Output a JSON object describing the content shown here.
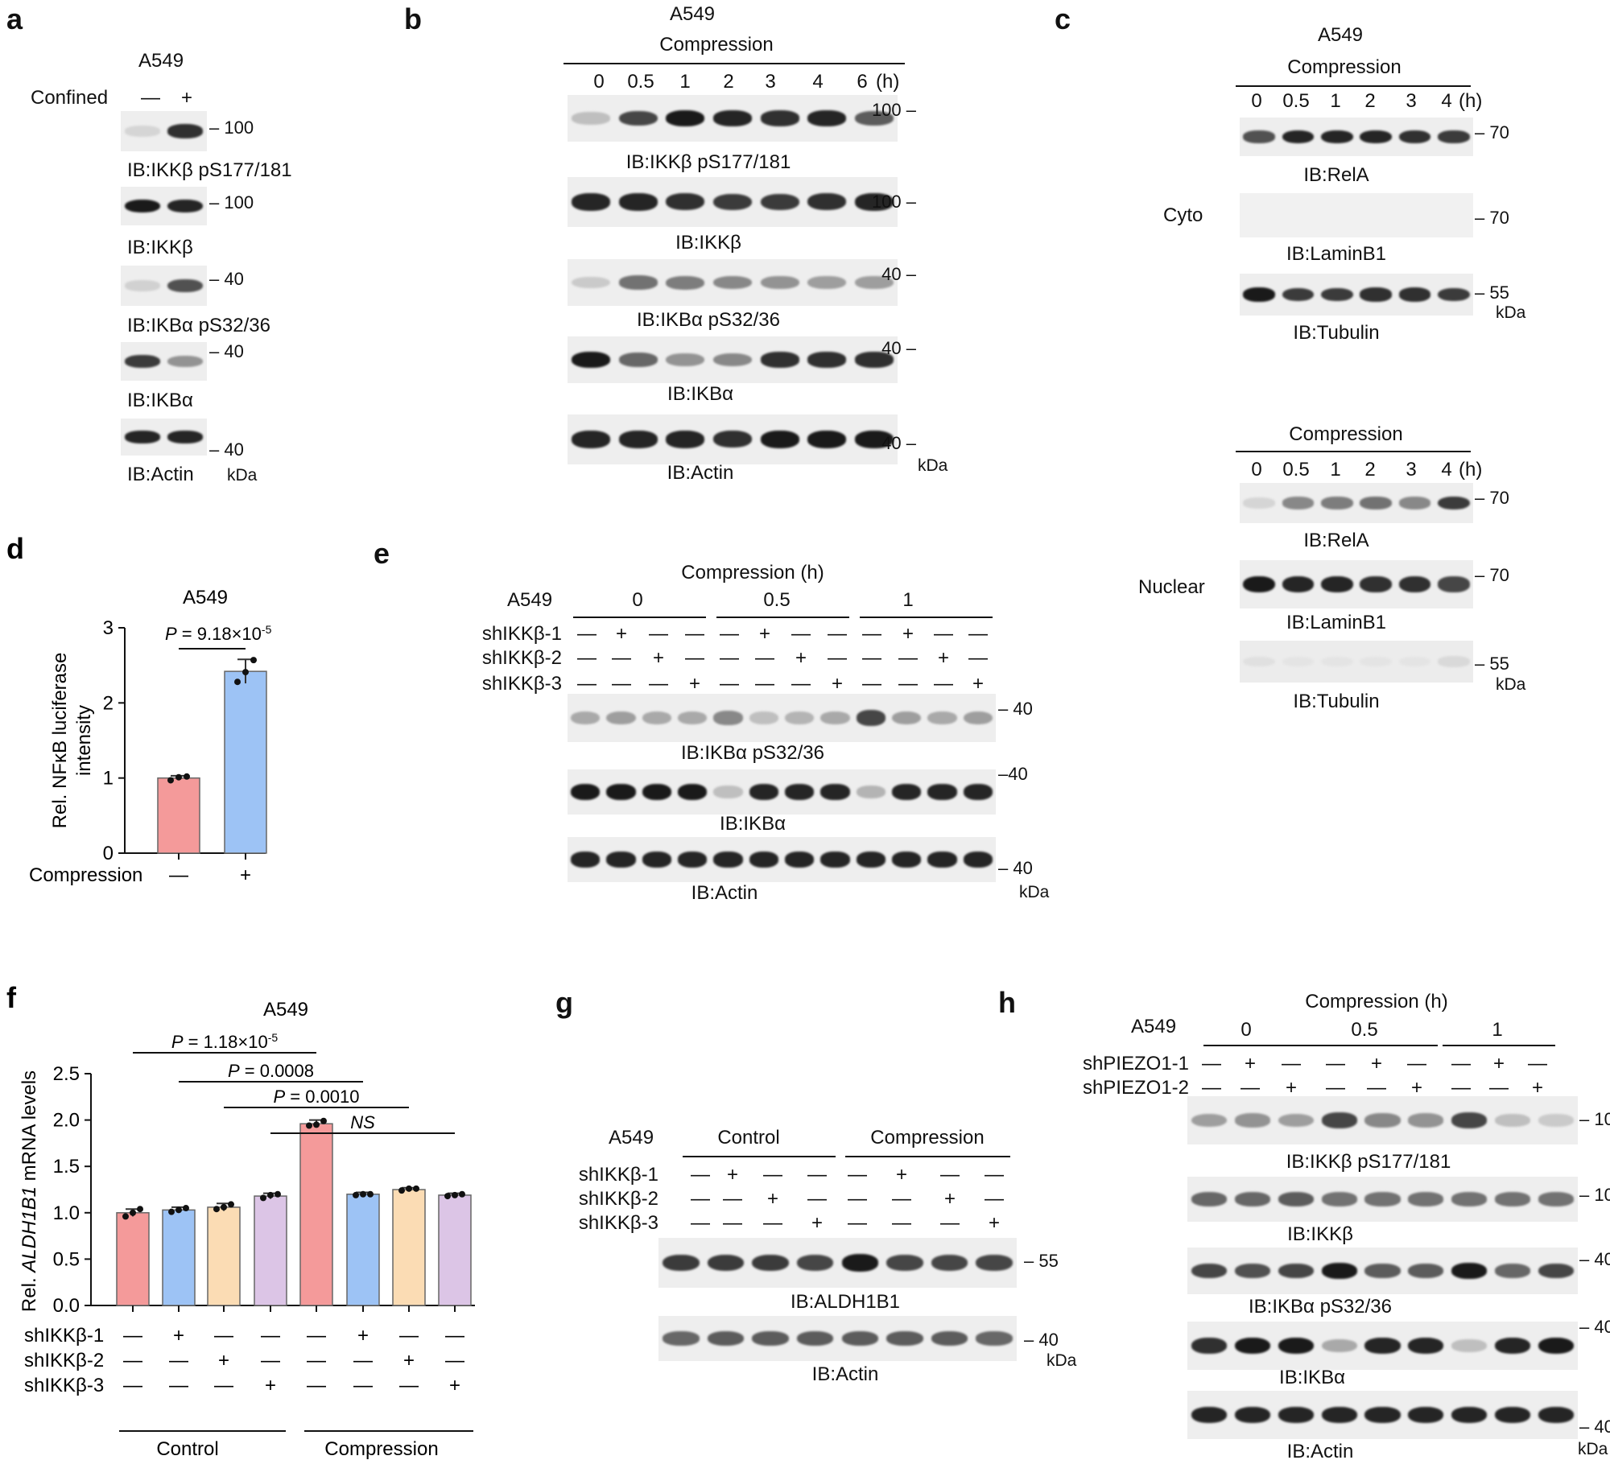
{
  "panel_labels": [
    "a",
    "b",
    "c",
    "d",
    "e",
    "f",
    "g",
    "h"
  ],
  "strings": {
    "A549": "A549",
    "confined": "Confined",
    "compression": "Compression",
    "compression_h": "Compression  (h)",
    "kda": "kDa",
    "cyto": "Cyto",
    "nuclear": "Nuclear",
    "control": "Control",
    "ib_ikkb_p": "IB:IKKβ pS177/181",
    "ib_ikkb": "IB:IKKβ",
    "ib_ikba_p": "IB:IKBα pS32/36",
    "ib_ikba": "IB:IKBα",
    "ib_actin": "IB:Actin",
    "ib_rela": "IB:RelA",
    "ib_laminb1": "IB:LaminB1",
    "ib_tubulin": "IB:Tubulin",
    "ib_aldh1b1": "IB:ALDH1B1",
    "shIKKb1": "shIKKβ-1",
    "shIKKb2": "shIKKβ-2",
    "shIKKb3": "shIKKβ-3",
    "shPIEZO1_1": "shPIEZO1-1",
    "shPIEZO1_2": "shPIEZO1-2",
    "minus": "—",
    "plus": "+",
    "m100": "100",
    "m70": "70",
    "m55": "55",
    "m40": "40"
  },
  "panel_a": {
    "lanes": [
      "—",
      "+"
    ]
  },
  "panel_b": {
    "timepoints": [
      "0",
      "0.5",
      "1",
      "2",
      "3",
      "4",
      "6"
    ],
    "unit": "(h)"
  },
  "panel_c": {
    "timepoints": [
      "0",
      "0.5",
      "1",
      "2",
      "3",
      "4"
    ],
    "unit": "(h)"
  },
  "panel_e": {
    "groups": [
      "0",
      "0.5",
      "1"
    ]
  },
  "panel_h": {
    "groups": [
      "0",
      "0.5",
      "1"
    ]
  },
  "chart_data": [
    {
      "type": "bar",
      "panel": "d",
      "title": "A549",
      "ylabel": "Rel. NFκB luciferase intensity",
      "xlabel": "Compression",
      "categories": [
        "—",
        "+"
      ],
      "values": [
        1.0,
        2.42
      ],
      "errors": [
        0.03,
        0.16
      ],
      "points": [
        [
          0.97,
          1.01,
          1.02
        ],
        [
          2.28,
          2.41,
          2.57
        ]
      ],
      "ylim": [
        0,
        3
      ],
      "yticks": [
        "0",
        "1",
        "2",
        "3"
      ],
      "colors": [
        "#f49a9a",
        "#9dc3f5"
      ],
      "annotation": "P = 9.18×10",
      "annotation_exp": "-5"
    },
    {
      "type": "bar",
      "panel": "f",
      "title": "A549",
      "ylabel_prefix": "Rel. ",
      "ylabel_italic": "ALDH1B1",
      "ylabel_suffix": " mRNA levels",
      "categories": [
        "1",
        "2",
        "3",
        "4",
        "5",
        "6",
        "7",
        "8"
      ],
      "values": [
        1.0,
        1.03,
        1.06,
        1.18,
        1.96,
        1.2,
        1.25,
        1.19
      ],
      "errors": [
        0.04,
        0.03,
        0.04,
        0.03,
        0.04,
        0.02,
        0.02,
        0.02
      ],
      "points": [
        [
          0.96,
          1.0,
          1.04
        ],
        [
          1.01,
          1.03,
          1.05
        ],
        [
          1.04,
          1.06,
          1.09
        ],
        [
          1.16,
          1.19,
          1.2
        ],
        [
          1.94,
          1.95,
          1.99
        ],
        [
          1.19,
          1.2,
          1.2
        ],
        [
          1.24,
          1.26,
          1.26
        ],
        [
          1.18,
          1.19,
          1.2
        ]
      ],
      "colors": [
        "#f49a9a",
        "#9dc3f5",
        "#fbdcb4",
        "#dcc5e6",
        "#f49a9a",
        "#9dc3f5",
        "#fbdcb4",
        "#dcc5e6"
      ],
      "ylim": [
        0,
        2.5
      ],
      "yticks": [
        "0.0",
        "0.5",
        "1.0",
        "1.5",
        "2.0",
        "2.5"
      ],
      "rows": [
        {
          "label": "shIKKβ-1",
          "marks": [
            "—",
            "+",
            "—",
            "—",
            "—",
            "+",
            "—",
            "—"
          ]
        },
        {
          "label": "shIKKβ-2",
          "marks": [
            "—",
            "—",
            "+",
            "—",
            "—",
            "—",
            "+",
            "—"
          ]
        },
        {
          "label": "shIKKβ-3",
          "marks": [
            "—",
            "—",
            "—",
            "+",
            "—",
            "—",
            "—",
            "+"
          ]
        }
      ],
      "groups": [
        "Control",
        "Compression"
      ],
      "comparisons": [
        {
          "label": "P = 1.18×10",
          "exp": "-5",
          "from": 0,
          "to": 4
        },
        {
          "label": "P = 0.0008",
          "exp": "",
          "from": 1,
          "to": 5
        },
        {
          "label": "P = 0.0010",
          "exp": "",
          "from": 2,
          "to": 6
        },
        {
          "label": "NS",
          "exp": "",
          "from": 3,
          "to": 7
        }
      ]
    }
  ]
}
